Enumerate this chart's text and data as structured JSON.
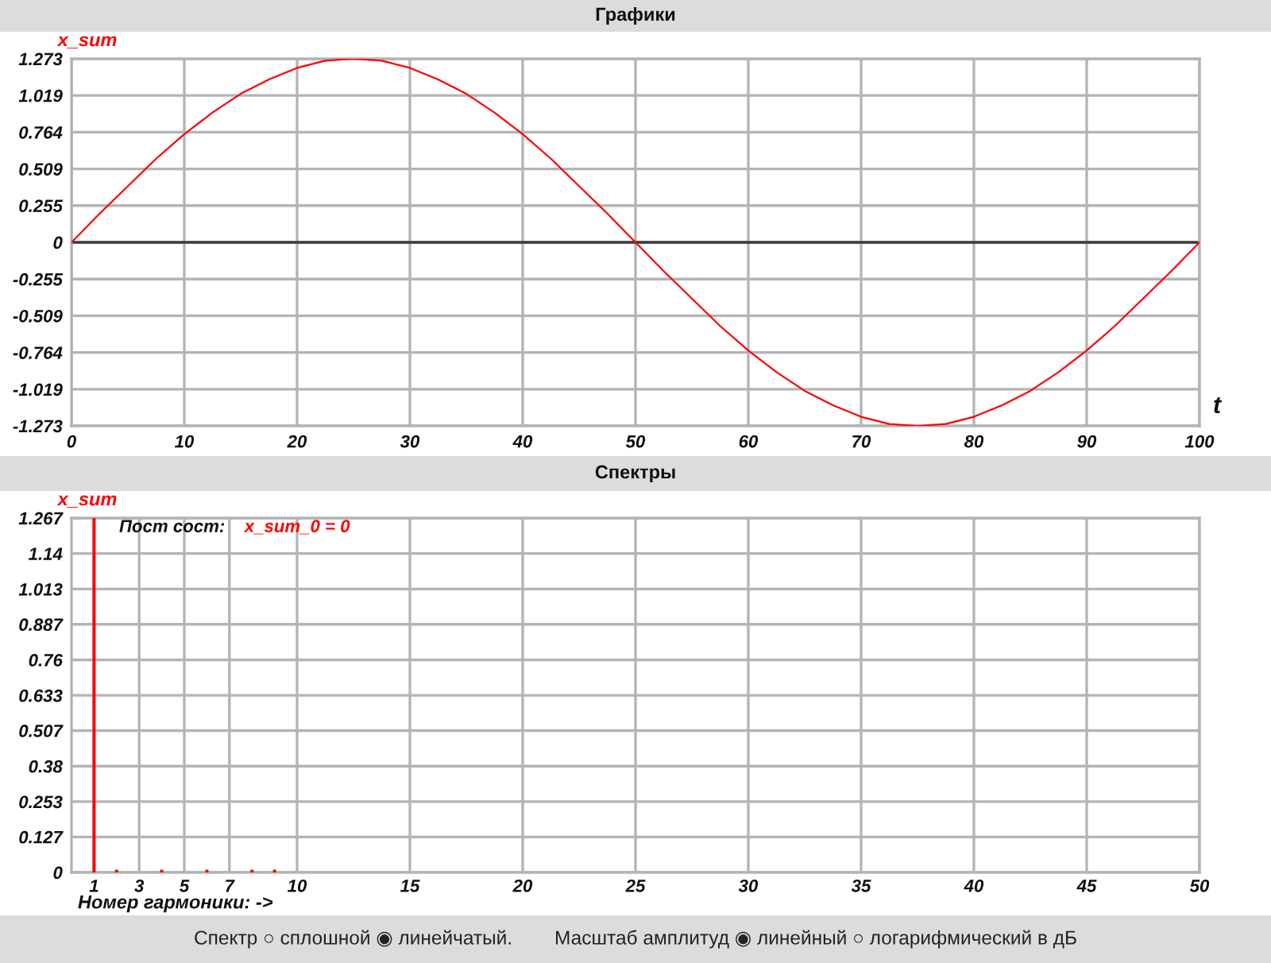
{
  "chart_data": [
    {
      "type": "line",
      "title": "Графики",
      "xlabel": "t",
      "ylabel": "x_sum",
      "x": [
        0,
        2.5,
        5,
        7.5,
        10,
        12.5,
        15,
        17.5,
        20,
        22.5,
        25,
        27.5,
        30,
        32.5,
        35,
        37.5,
        40,
        42.5,
        45,
        47.5,
        50,
        52.5,
        55,
        57.5,
        60,
        62.5,
        65,
        67.5,
        70,
        72.5,
        75,
        77.5,
        80,
        82.5,
        85,
        87.5,
        90,
        92.5,
        95,
        97.5,
        100
      ],
      "series": [
        {
          "color": "#ff0000",
          "values": [
            0,
            0.2,
            0.39,
            0.58,
            0.75,
            0.9,
            1.03,
            1.13,
            1.21,
            1.26,
            1.273,
            1.26,
            1.21,
            1.13,
            1.03,
            0.9,
            0.75,
            0.58,
            0.39,
            0.2,
            0,
            -0.2,
            -0.39,
            -0.58,
            -0.75,
            -0.9,
            -1.03,
            -1.13,
            -1.21,
            -1.26,
            -1.273,
            -1.26,
            -1.21,
            -1.13,
            -1.03,
            -0.9,
            -0.75,
            -0.58,
            -0.39,
            -0.2,
            0
          ]
        }
      ],
      "xlim": [
        0,
        100
      ],
      "xticks": [
        0,
        10,
        20,
        30,
        40,
        50,
        60,
        70,
        80,
        90,
        100
      ],
      "ylim": [
        -1.273,
        1.273
      ],
      "yticks": [
        -1.273,
        -1.019,
        -0.764,
        -0.509,
        -0.255,
        0,
        0.255,
        0.509,
        0.764,
        1.019,
        1.273
      ],
      "grid": true,
      "ref_lines": [
        {
          "axis": "y",
          "value": 0,
          "color": "#3c3c3c"
        }
      ]
    },
    {
      "type": "bar",
      "title": "Спектры",
      "xlabel": "Номер гармоники: ->",
      "ylabel": "x_sum",
      "annotations": [
        "Пост сост:",
        "x_sum_0 = 0"
      ],
      "x": [
        1,
        2,
        4,
        6,
        8,
        9
      ],
      "series": [
        {
          "color": "#ff0000",
          "values": [
            1.267,
            0.01,
            0.01,
            0.01,
            0.01,
            0.01
          ]
        }
      ],
      "xlim": [
        0,
        50
      ],
      "xticks": [
        1,
        3,
        5,
        7,
        10,
        15,
        20,
        25,
        30,
        35,
        40,
        45,
        50
      ],
      "ylim": [
        0,
        1.267
      ],
      "yticks": [
        0,
        0.127,
        0.253,
        0.38,
        0.507,
        0.633,
        0.76,
        0.887,
        1.013,
        1.14,
        1.267
      ],
      "grid": true
    },
    {
      "type": "other",
      "annotations": [
        "Спектр ○ сплошной ◉ линейчатый.",
        "Масштаб амплитуд ◉ линейный ○ логарифмический в дБ"
      ]
    }
  ]
}
